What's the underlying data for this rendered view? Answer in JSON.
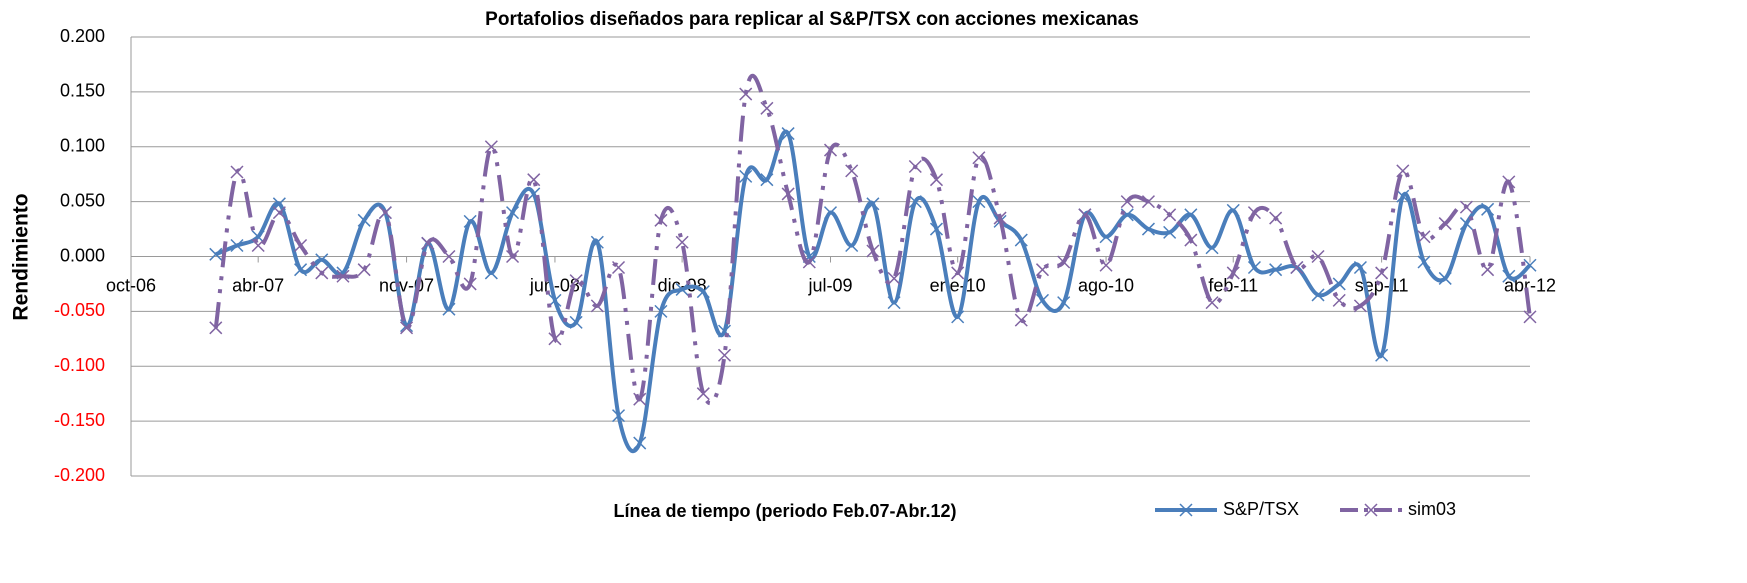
{
  "chart_data": {
    "type": "line",
    "title": "Portafolios diseñados para replicar al S&P/TSX con acciones mexicanas",
    "x_label": "Línea de tiempo (periodo  Feb.07-Abr.12)",
    "y_label": "Rendimiento",
    "x": [
      "2007-02",
      "2007-03",
      "2007-04",
      "2007-05",
      "2007-06",
      "2007-07",
      "2007-08",
      "2007-09",
      "2007-10",
      "2007-11",
      "2007-12",
      "2008-01",
      "2008-02",
      "2008-03",
      "2008-04",
      "2008-05",
      "2008-06",
      "2008-07",
      "2008-08",
      "2008-09",
      "2008-10",
      "2008-11",
      "2008-12",
      "2009-01",
      "2009-02",
      "2009-03",
      "2009-04",
      "2009-05",
      "2009-06",
      "2009-07",
      "2009-08",
      "2009-09",
      "2009-10",
      "2009-11",
      "2009-12",
      "2010-01",
      "2010-02",
      "2010-03",
      "2010-04",
      "2010-05",
      "2010-06",
      "2010-07",
      "2010-08",
      "2010-09",
      "2010-10",
      "2010-11",
      "2010-12",
      "2011-01",
      "2011-02",
      "2011-03",
      "2011-04",
      "2011-05",
      "2011-06",
      "2011-07",
      "2011-08",
      "2011-09",
      "2011-10",
      "2011-11",
      "2011-12",
      "2012-01",
      "2012-02",
      "2012-03",
      "2012-04"
    ],
    "series": [
      {
        "name": "S&P/TSX",
        "color": "#4a7ebb",
        "dash": false,
        "values": [
          0.002,
          0.01,
          0.018,
          0.048,
          -0.012,
          -0.003,
          -0.015,
          0.033,
          0.04,
          -0.063,
          0.012,
          -0.048,
          0.032,
          -0.015,
          0.04,
          0.057,
          -0.04,
          -0.06,
          0.013,
          -0.145,
          -0.17,
          -0.05,
          -0.03,
          -0.032,
          -0.068,
          0.073,
          0.07,
          0.112,
          0.0,
          0.04,
          0.01,
          0.048,
          -0.042,
          0.05,
          0.025,
          -0.055,
          0.05,
          0.032,
          0.015,
          -0.04,
          -0.042,
          0.038,
          0.018,
          0.038,
          0.025,
          0.022,
          0.038,
          0.008,
          0.042,
          -0.01,
          -0.012,
          -0.01,
          -0.035,
          -0.025,
          -0.01,
          -0.09,
          0.055,
          -0.005,
          -0.02,
          0.03,
          0.043,
          -0.018,
          -0.008
        ]
      },
      {
        "name": "sim03",
        "color": "#8064a2",
        "dash": true,
        "values": [
          -0.065,
          0.077,
          0.01,
          0.04,
          0.01,
          -0.015,
          -0.018,
          -0.012,
          0.04,
          -0.065,
          0.012,
          0.0,
          -0.025,
          0.1,
          0.0,
          0.07,
          -0.075,
          -0.022,
          -0.045,
          -0.01,
          -0.13,
          0.033,
          0.013,
          -0.125,
          -0.09,
          0.148,
          0.135,
          0.057,
          -0.005,
          0.097,
          0.078,
          0.005,
          -0.02,
          0.082,
          0.07,
          -0.015,
          0.09,
          0.035,
          -0.058,
          -0.012,
          -0.005,
          0.038,
          -0.008,
          0.05,
          0.05,
          0.038,
          0.015,
          -0.042,
          -0.015,
          0.04,
          0.035,
          -0.01,
          0.0,
          -0.04,
          -0.045,
          -0.015,
          0.078,
          0.018,
          0.03,
          0.045,
          -0.012,
          0.068,
          -0.055
        ]
      }
    ],
    "xlim": [
      "2006-10",
      "2012-04"
    ],
    "xticks": [
      {
        "value": "2006-10",
        "label": "oct-06"
      },
      {
        "value": "2007-04",
        "label": "abr-07"
      },
      {
        "value": "2007-11",
        "label": "nov-07"
      },
      {
        "value": "2008-06",
        "label": "jun-08"
      },
      {
        "value": "2008-12",
        "label": "dic-08"
      },
      {
        "value": "2009-07",
        "label": "jul-09"
      },
      {
        "value": "2010-01",
        "label": "ene-10"
      },
      {
        "value": "2010-08",
        "label": "ago-10"
      },
      {
        "value": "2011-02",
        "label": "feb-11"
      },
      {
        "value": "2011-09",
        "label": "sep-11"
      },
      {
        "value": "2012-04",
        "label": "abr-12"
      }
    ],
    "ylim": [
      -0.2,
      0.2
    ],
    "yticks": [
      {
        "value": 0.2,
        "label": "0.200"
      },
      {
        "value": 0.15,
        "label": "0.150"
      },
      {
        "value": 0.1,
        "label": "0.100"
      },
      {
        "value": 0.05,
        "label": "0.050"
      },
      {
        "value": 0,
        "label": "0.000"
      },
      {
        "value": -0.05,
        "label": "-0.050"
      },
      {
        "value": -0.1,
        "label": "-0.100"
      },
      {
        "value": -0.15,
        "label": "-0.150"
      },
      {
        "value": -0.2,
        "label": "-0.200"
      }
    ],
    "negative_tick_color": "#ff0000",
    "grid": true,
    "legend": "bottom-right"
  }
}
